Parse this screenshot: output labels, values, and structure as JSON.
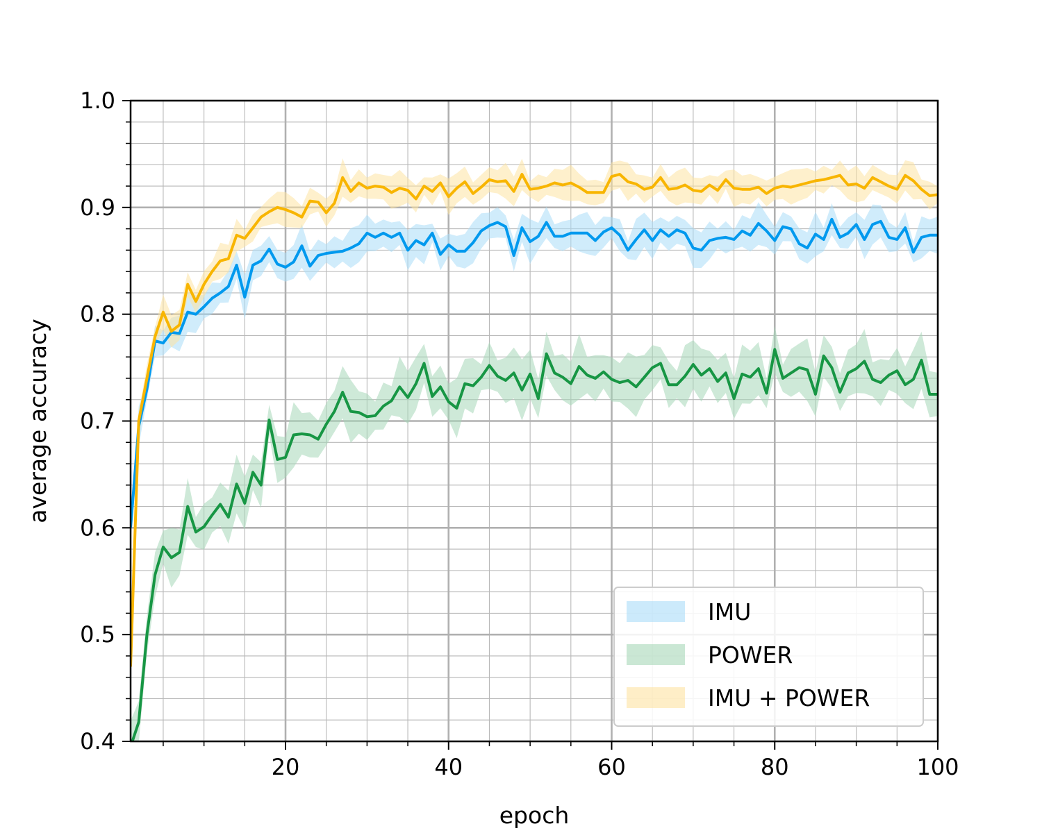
{
  "chart_data": {
    "type": "line",
    "title": "",
    "xlabel": "epoch",
    "ylabel": "average accuracy",
    "xlim": [
      1,
      100
    ],
    "ylim": [
      0.4,
      1.0
    ],
    "xticks": [
      20,
      40,
      60,
      80,
      100
    ],
    "xtick_labels": [
      "20",
      "40",
      "60",
      "80",
      "100"
    ],
    "yticks": [
      0.4,
      0.5,
      0.6,
      0.7,
      0.8,
      0.9,
      1.0
    ],
    "ytick_labels": [
      "0.4",
      "0.5",
      "0.6",
      "0.7",
      "0.8",
      "0.9",
      "1.0"
    ],
    "grid": true,
    "minor_grid": true,
    "legend_position": "lower-right",
    "x": [
      1,
      2,
      3,
      4,
      5,
      6,
      7,
      8,
      9,
      10,
      11,
      12,
      13,
      14,
      15,
      16,
      17,
      18,
      19,
      20,
      21,
      22,
      23,
      24,
      25,
      26,
      27,
      28,
      29,
      30,
      31,
      32,
      33,
      34,
      35,
      36,
      37,
      38,
      39,
      40,
      41,
      42,
      43,
      44,
      45,
      46,
      47,
      48,
      49,
      50,
      51,
      52,
      53,
      54,
      55,
      56,
      57,
      58,
      59,
      60,
      61,
      62,
      63,
      64,
      65,
      66,
      67,
      68,
      69,
      70,
      71,
      72,
      73,
      74,
      75,
      76,
      77,
      78,
      79,
      80,
      81,
      82,
      83,
      84,
      85,
      86,
      87,
      88,
      89,
      90,
      91,
      92,
      93,
      94,
      95,
      96,
      97,
      98,
      99,
      100
    ],
    "series": [
      {
        "name": "IMU",
        "line_color": "#0099ee",
        "band_color": "#aadcf8",
        "band_width": 0.015,
        "values": [
          0.6,
          0.695,
          0.73,
          0.775,
          0.773,
          0.783,
          0.782,
          0.802,
          0.8,
          0.807,
          0.815,
          0.82,
          0.826,
          0.846,
          0.816,
          0.846,
          0.85,
          0.861,
          0.847,
          0.844,
          0.849,
          0.864,
          0.845,
          0.855,
          0.857,
          0.858,
          0.859,
          0.862,
          0.866,
          0.876,
          0.872,
          0.876,
          0.872,
          0.876,
          0.86,
          0.869,
          0.865,
          0.876,
          0.856,
          0.865,
          0.859,
          0.859,
          0.867,
          0.878,
          0.883,
          0.886,
          0.882,
          0.855,
          0.881,
          0.868,
          0.873,
          0.886,
          0.873,
          0.873,
          0.876,
          0.876,
          0.876,
          0.869,
          0.877,
          0.881,
          0.874,
          0.86,
          0.87,
          0.879,
          0.869,
          0.879,
          0.873,
          0.879,
          0.876,
          0.862,
          0.86,
          0.869,
          0.871,
          0.872,
          0.87,
          0.878,
          0.874,
          0.885,
          0.878,
          0.869,
          0.882,
          0.88,
          0.866,
          0.862,
          0.875,
          0.87,
          0.889,
          0.872,
          0.876,
          0.884,
          0.87,
          0.884,
          0.887,
          0.872,
          0.87,
          0.881,
          0.858,
          0.872,
          0.874,
          0.874
        ]
      },
      {
        "name": "POWER",
        "line_color": "#179644",
        "band_color": "#a6d7b8",
        "band_width": 0.022,
        "values": [
          0.395,
          0.418,
          0.5,
          0.556,
          0.582,
          0.572,
          0.577,
          0.62,
          0.596,
          0.601,
          0.612,
          0.622,
          0.61,
          0.641,
          0.623,
          0.652,
          0.64,
          0.701,
          0.664,
          0.666,
          0.687,
          0.688,
          0.687,
          0.683,
          0.697,
          0.709,
          0.727,
          0.709,
          0.708,
          0.704,
          0.705,
          0.714,
          0.719,
          0.732,
          0.722,
          0.735,
          0.754,
          0.723,
          0.732,
          0.718,
          0.712,
          0.735,
          0.733,
          0.741,
          0.752,
          0.742,
          0.738,
          0.745,
          0.729,
          0.744,
          0.721,
          0.763,
          0.745,
          0.741,
          0.735,
          0.751,
          0.743,
          0.74,
          0.746,
          0.739,
          0.736,
          0.738,
          0.732,
          0.741,
          0.75,
          0.754,
          0.734,
          0.734,
          0.742,
          0.753,
          0.743,
          0.749,
          0.737,
          0.745,
          0.721,
          0.744,
          0.741,
          0.749,
          0.726,
          0.767,
          0.74,
          0.745,
          0.75,
          0.748,
          0.725,
          0.761,
          0.75,
          0.727,
          0.745,
          0.749,
          0.756,
          0.739,
          0.736,
          0.743,
          0.747,
          0.734,
          0.739,
          0.757,
          0.725,
          0.725
        ]
      },
      {
        "name": "IMU + POWER",
        "line_color": "#f8b500",
        "band_color": "#fde3a2",
        "band_width": 0.013,
        "values": [
          0.47,
          0.7,
          0.74,
          0.779,
          0.802,
          0.784,
          0.79,
          0.828,
          0.812,
          0.828,
          0.84,
          0.85,
          0.852,
          0.874,
          0.871,
          0.881,
          0.891,
          0.896,
          0.9,
          0.898,
          0.895,
          0.891,
          0.906,
          0.905,
          0.895,
          0.904,
          0.928,
          0.915,
          0.923,
          0.918,
          0.92,
          0.919,
          0.914,
          0.918,
          0.916,
          0.908,
          0.92,
          0.915,
          0.923,
          0.91,
          0.918,
          0.924,
          0.913,
          0.919,
          0.926,
          0.924,
          0.925,
          0.915,
          0.931,
          0.917,
          0.918,
          0.92,
          0.923,
          0.921,
          0.923,
          0.919,
          0.914,
          0.914,
          0.914,
          0.929,
          0.931,
          0.924,
          0.922,
          0.917,
          0.919,
          0.928,
          0.917,
          0.918,
          0.921,
          0.916,
          0.915,
          0.921,
          0.916,
          0.926,
          0.918,
          0.917,
          0.917,
          0.919,
          0.913,
          0.918,
          0.92,
          0.919,
          0.921,
          0.923,
          0.925,
          0.926,
          0.928,
          0.93,
          0.921,
          0.922,
          0.918,
          0.928,
          0.924,
          0.92,
          0.917,
          0.93,
          0.925,
          0.917,
          0.911,
          0.912
        ]
      }
    ]
  }
}
